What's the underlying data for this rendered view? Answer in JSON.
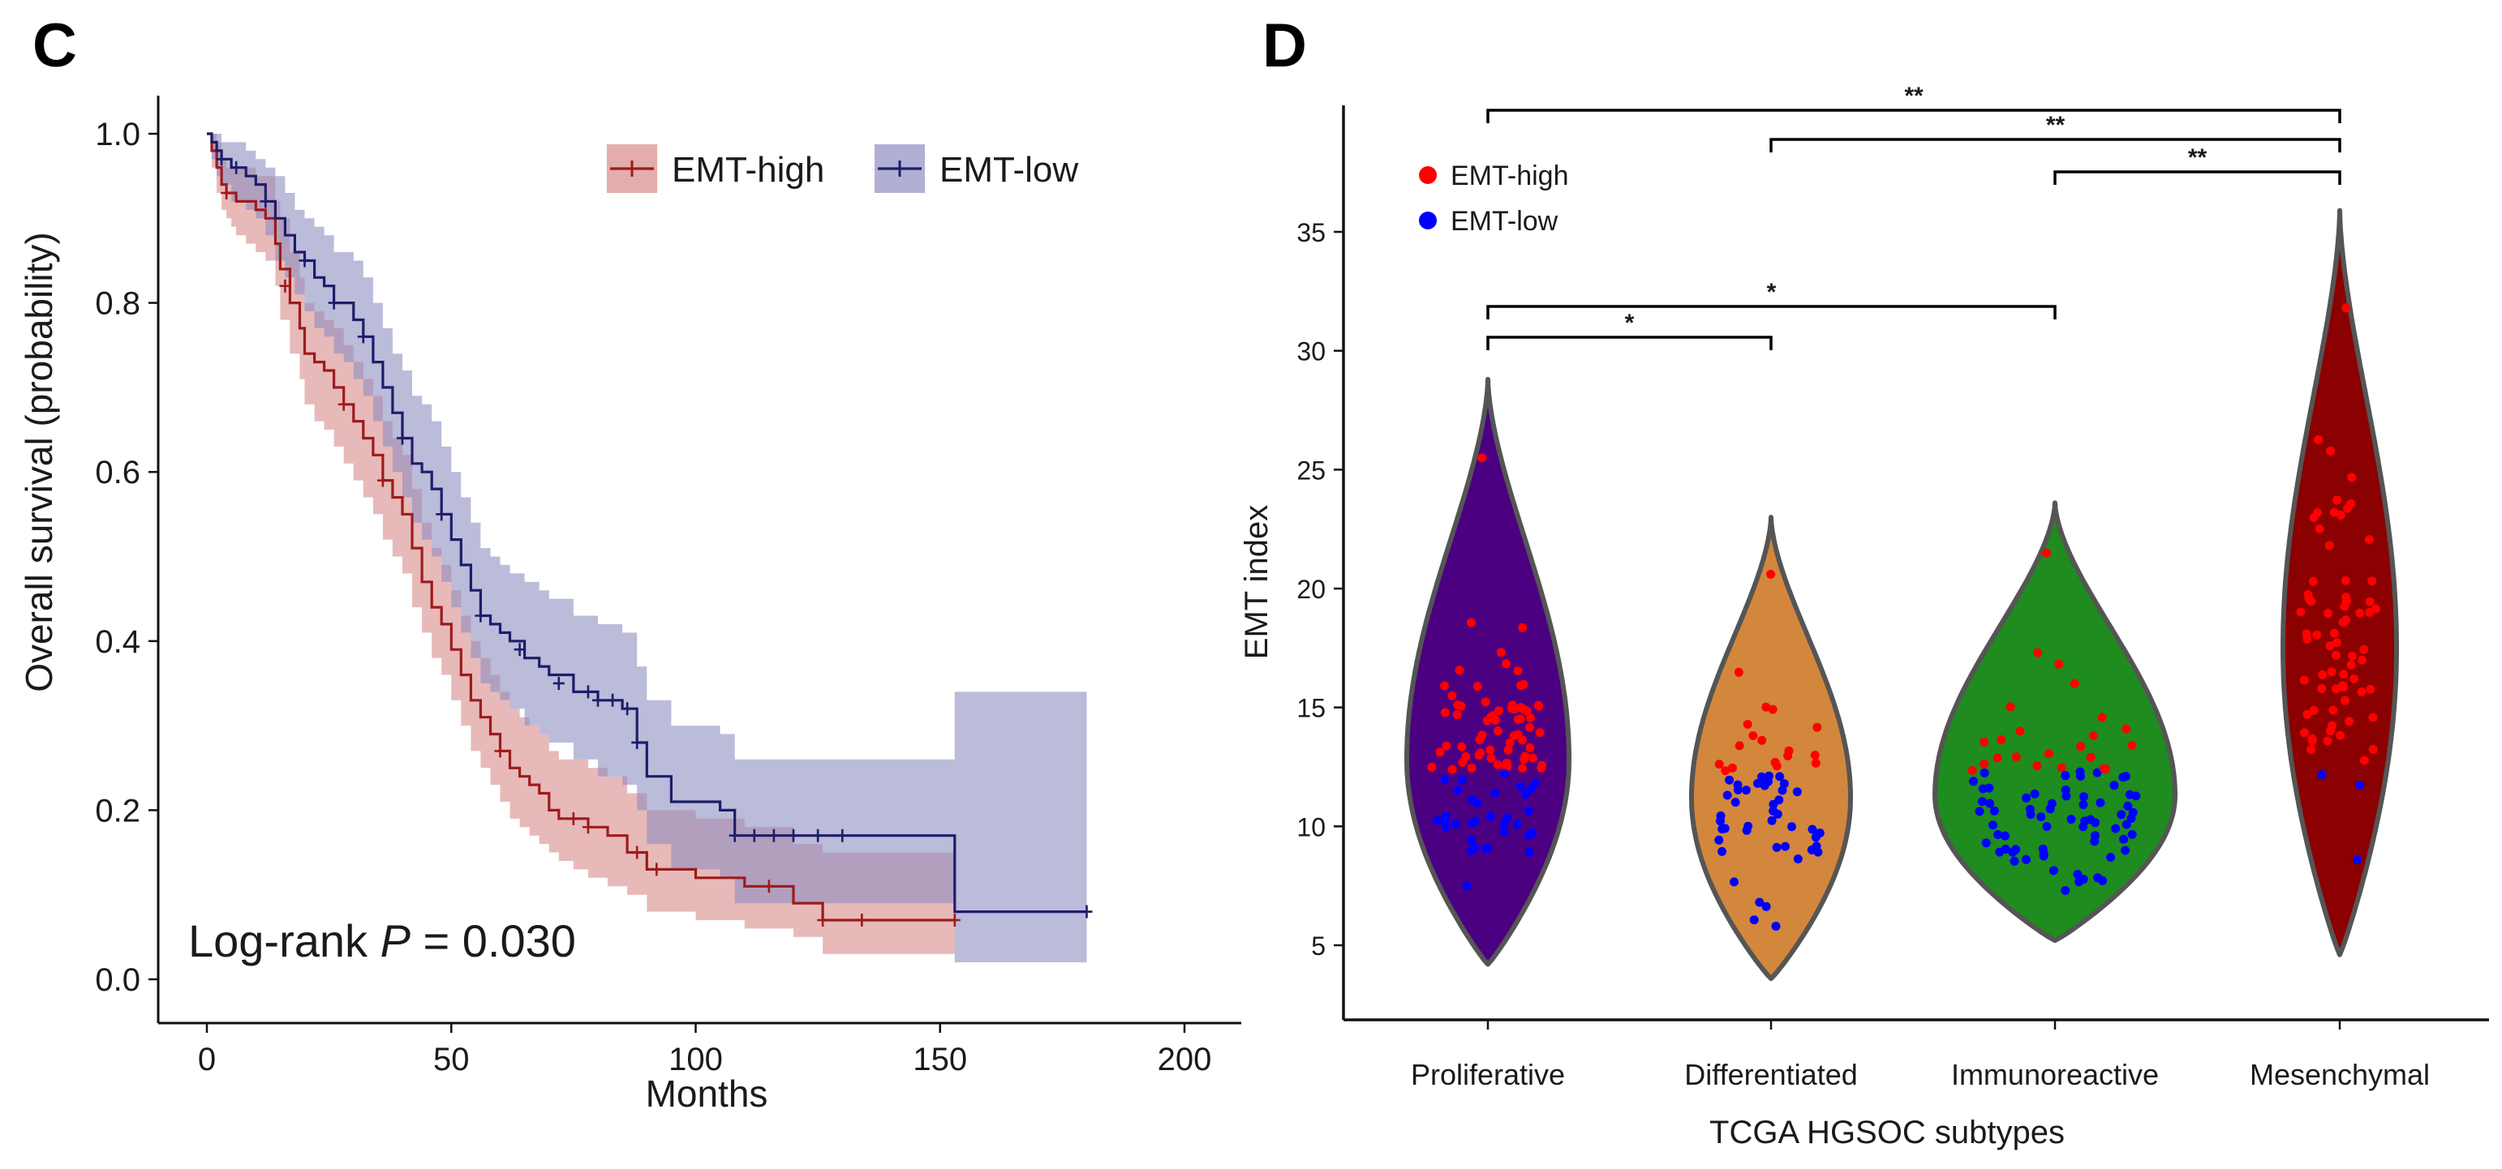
{
  "chart_data": [
    {
      "panel_label": "C",
      "type": "line",
      "subtype": "kaplan-meier",
      "xlabel": "Months",
      "ylabel": "Overall survival (probability)",
      "xlim": [
        0,
        200
      ],
      "ylim": [
        0,
        1.0
      ],
      "x_ticks": [
        0,
        50,
        100,
        150,
        200
      ],
      "x_tick_labels": [
        "0",
        "50",
        "100",
        "150",
        "200"
      ],
      "y_ticks": [
        0.0,
        0.2,
        0.4,
        0.6,
        0.8,
        1.0
      ],
      "y_tick_labels": [
        "0.0",
        "0.2",
        "0.4",
        "0.6",
        "0.8",
        "1.0"
      ],
      "annotation": {
        "prefix": "Log-rank ",
        "italic": "P",
        "suffix": " = 0.030"
      },
      "legend_position": "top-right",
      "series": [
        {
          "name": "EMT-high",
          "color": "#9e1b1b",
          "band_color": "#d98a8a",
          "x": [
            0,
            1,
            2,
            3,
            4,
            5,
            6,
            8,
            10,
            12,
            14,
            15,
            17,
            19,
            20,
            22,
            24,
            26,
            28,
            30,
            32,
            34,
            36,
            38,
            40,
            42,
            44,
            46,
            48,
            50,
            52,
            54,
            56,
            58,
            60,
            62,
            64,
            66,
            68,
            70,
            72,
            75,
            78,
            82,
            86,
            90,
            100,
            110,
            120,
            126,
            150,
            153
          ],
          "y": [
            1.0,
            0.98,
            0.96,
            0.94,
            0.93,
            0.93,
            0.92,
            0.92,
            0.91,
            0.9,
            0.87,
            0.84,
            0.8,
            0.77,
            0.74,
            0.73,
            0.72,
            0.7,
            0.68,
            0.66,
            0.64,
            0.62,
            0.59,
            0.57,
            0.55,
            0.51,
            0.47,
            0.44,
            0.42,
            0.39,
            0.36,
            0.33,
            0.31,
            0.29,
            0.27,
            0.25,
            0.24,
            0.23,
            0.22,
            0.2,
            0.19,
            0.19,
            0.18,
            0.17,
            0.15,
            0.13,
            0.12,
            0.11,
            0.09,
            0.07,
            0.07,
            0.07
          ],
          "lower": [
            1.0,
            0.96,
            0.93,
            0.91,
            0.9,
            0.89,
            0.88,
            0.87,
            0.86,
            0.85,
            0.82,
            0.78,
            0.74,
            0.71,
            0.68,
            0.66,
            0.65,
            0.63,
            0.61,
            0.59,
            0.57,
            0.55,
            0.52,
            0.5,
            0.48,
            0.44,
            0.41,
            0.38,
            0.36,
            0.33,
            0.3,
            0.27,
            0.25,
            0.23,
            0.21,
            0.19,
            0.18,
            0.17,
            0.16,
            0.15,
            0.14,
            0.13,
            0.12,
            0.11,
            0.1,
            0.08,
            0.07,
            0.06,
            0.05,
            0.03,
            0.03,
            0.03
          ],
          "upper": [
            1.0,
            1.0,
            0.99,
            0.97,
            0.96,
            0.96,
            0.96,
            0.96,
            0.95,
            0.95,
            0.92,
            0.9,
            0.86,
            0.83,
            0.8,
            0.79,
            0.78,
            0.77,
            0.75,
            0.73,
            0.71,
            0.69,
            0.66,
            0.64,
            0.62,
            0.58,
            0.54,
            0.51,
            0.49,
            0.46,
            0.43,
            0.4,
            0.38,
            0.36,
            0.34,
            0.32,
            0.31,
            0.3,
            0.29,
            0.27,
            0.26,
            0.26,
            0.25,
            0.24,
            0.22,
            0.2,
            0.19,
            0.18,
            0.16,
            0.15,
            0.15,
            0.15
          ],
          "censor_x": [
            4,
            16,
            28,
            36,
            60,
            75,
            78,
            88,
            92,
            115,
            126,
            134,
            153
          ],
          "censor_y": [
            0.93,
            0.82,
            0.68,
            0.59,
            0.27,
            0.19,
            0.18,
            0.15,
            0.13,
            0.11,
            0.07,
            0.07,
            0.07
          ]
        },
        {
          "name": "EMT-low",
          "color": "#1d1d6b",
          "band_color": "#8e8ec2",
          "x": [
            0,
            1,
            2,
            3,
            5,
            8,
            10,
            12,
            14,
            16,
            18,
            20,
            22,
            24,
            26,
            28,
            30,
            32,
            34,
            36,
            38,
            40,
            42,
            44,
            46,
            48,
            50,
            52,
            54,
            56,
            58,
            60,
            62,
            65,
            68,
            70,
            75,
            80,
            85,
            88,
            90,
            95,
            100,
            105,
            108,
            120,
            130,
            152,
            153,
            180
          ],
          "y": [
            1.0,
            0.99,
            0.98,
            0.97,
            0.96,
            0.95,
            0.94,
            0.92,
            0.9,
            0.88,
            0.86,
            0.85,
            0.83,
            0.82,
            0.8,
            0.8,
            0.78,
            0.76,
            0.73,
            0.7,
            0.67,
            0.64,
            0.61,
            0.6,
            0.58,
            0.55,
            0.52,
            0.49,
            0.46,
            0.43,
            0.42,
            0.41,
            0.4,
            0.38,
            0.37,
            0.36,
            0.34,
            0.33,
            0.32,
            0.28,
            0.24,
            0.21,
            0.21,
            0.2,
            0.17,
            0.17,
            0.17,
            0.17,
            0.08,
            0.08
          ],
          "lower": [
            1.0,
            0.97,
            0.95,
            0.94,
            0.92,
            0.91,
            0.9,
            0.88,
            0.85,
            0.83,
            0.81,
            0.79,
            0.77,
            0.76,
            0.74,
            0.73,
            0.71,
            0.69,
            0.66,
            0.63,
            0.6,
            0.57,
            0.54,
            0.52,
            0.5,
            0.47,
            0.44,
            0.41,
            0.38,
            0.35,
            0.34,
            0.33,
            0.32,
            0.3,
            0.29,
            0.28,
            0.26,
            0.24,
            0.23,
            0.2,
            0.16,
            0.13,
            0.13,
            0.12,
            0.09,
            0.09,
            0.09,
            0.09,
            0.02,
            0.02
          ],
          "upper": [
            1.0,
            1.0,
            1.0,
            0.99,
            0.99,
            0.98,
            0.97,
            0.96,
            0.95,
            0.93,
            0.91,
            0.9,
            0.89,
            0.88,
            0.86,
            0.86,
            0.85,
            0.83,
            0.8,
            0.77,
            0.74,
            0.72,
            0.69,
            0.68,
            0.66,
            0.63,
            0.6,
            0.57,
            0.54,
            0.51,
            0.5,
            0.49,
            0.48,
            0.47,
            0.46,
            0.45,
            0.43,
            0.42,
            0.41,
            0.37,
            0.33,
            0.3,
            0.3,
            0.29,
            0.26,
            0.26,
            0.26,
            0.26,
            0.34,
            0.34
          ],
          "censor_x": [
            3,
            6,
            12,
            20,
            26,
            32,
            40,
            48,
            56,
            64,
            72,
            78,
            80,
            83,
            86,
            88,
            108,
            112,
            116,
            120,
            125,
            130,
            180
          ],
          "censor_y": [
            0.97,
            0.96,
            0.92,
            0.85,
            0.8,
            0.76,
            0.64,
            0.55,
            0.43,
            0.39,
            0.35,
            0.34,
            0.33,
            0.33,
            0.32,
            0.28,
            0.17,
            0.17,
            0.17,
            0.17,
            0.17,
            0.17,
            0.08
          ]
        }
      ]
    },
    {
      "panel_label": "D",
      "type": "violin",
      "xlabel": "TCGA HGSOC subtypes",
      "ylabel": "EMT index",
      "ylim": [
        3.5,
        40
      ],
      "y_ticks": [
        5,
        10,
        15,
        20,
        25,
        30,
        35
      ],
      "y_tick_labels": [
        "5",
        "10",
        "15",
        "20",
        "25",
        "30",
        "35"
      ],
      "categories": [
        "Proliferative",
        "Differentiated",
        "Immunoreactive",
        "Mesenchymal"
      ],
      "violin_colors": [
        "#4b0082",
        "#d2873c",
        "#1e8c1e",
        "#8b0000"
      ],
      "violin_outline": "#555555",
      "legend_position": "top-left",
      "legend": [
        {
          "name": "EMT-high",
          "color": "#ff0000"
        },
        {
          "name": "EMT-low",
          "color": "#0000ff"
        }
      ],
      "high_low_threshold": 12.3,
      "groups": [
        {
          "name": "Proliferative",
          "min": 4.2,
          "max": 28.8,
          "mode": 12.8,
          "n_points": 100,
          "pt_min": 7.5,
          "pt_max": 25.5
        },
        {
          "name": "Differentiated",
          "min": 3.6,
          "max": 23.0,
          "mode": 11.2,
          "n_points": 62,
          "pt_min": 5.8,
          "pt_max": 20.6
        },
        {
          "name": "Immunoreactive",
          "min": 5.2,
          "max": 23.6,
          "mode": 11.3,
          "n_points": 90,
          "pt_min": 7.3,
          "pt_max": 21.5
        },
        {
          "name": "Mesenchymal",
          "min": 4.6,
          "max": 35.9,
          "mode": 17.5,
          "n_points": 72,
          "pt_min": 8.6,
          "pt_max": 31.8
        }
      ],
      "significance": [
        {
          "from": "Proliferative",
          "to": "Mesenchymal",
          "y": 39.0,
          "label": "**"
        },
        {
          "from": "Differentiated",
          "to": "Mesenchymal",
          "y": 38.8,
          "label": "**"
        },
        {
          "from": "Immunoreactive",
          "to": "Mesenchymal",
          "y": 37.5,
          "label": "**"
        },
        {
          "from": "Proliferative",
          "to": "Immunoreactive",
          "y": 32.0,
          "label": "*"
        },
        {
          "from": "Proliferative",
          "to": "Differentiated",
          "y": 30.5,
          "label": "*"
        }
      ]
    }
  ]
}
